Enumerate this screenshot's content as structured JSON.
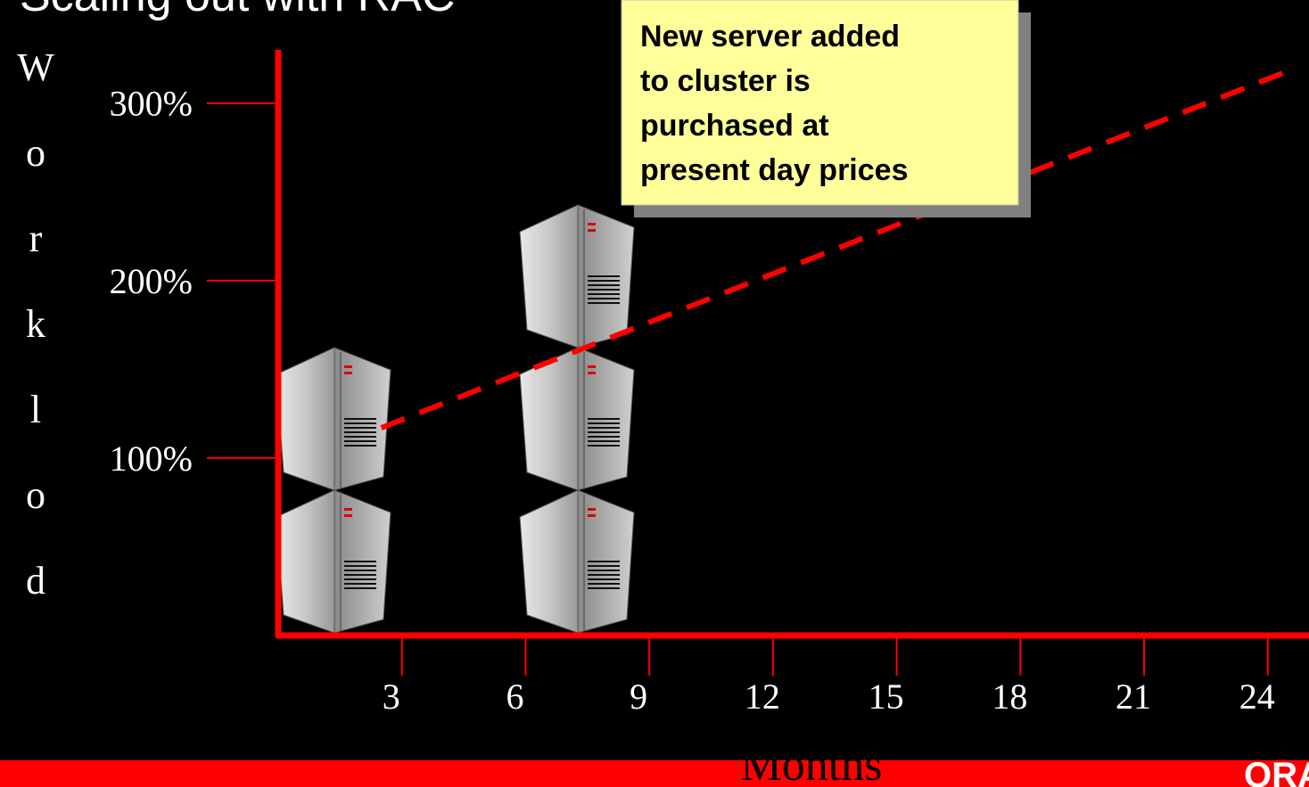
{
  "title": "Scaling out with RAC",
  "logo": "ORACLE",
  "chart_data": {
    "type": "line",
    "y_label": "Worklod",
    "x_label": "Months",
    "annotation": [
      "New server added",
      "to cluster is",
      "purchased at",
      "present day prices"
    ],
    "xlim": [
      0,
      25
    ],
    "ylim": [
      0,
      330
    ],
    "xticks": [
      3,
      6,
      9,
      12,
      15,
      18,
      21,
      24
    ],
    "yticks": [
      {
        "value": 100,
        "label": "100%"
      },
      {
        "value": 200,
        "label": "200%"
      },
      {
        "value": 300,
        "label": "300%"
      }
    ],
    "x": [
      2.5,
      24.7
    ],
    "series": [
      {
        "color": "#ff0000",
        "values": [
          117,
          320
        ]
      }
    ]
  }
}
